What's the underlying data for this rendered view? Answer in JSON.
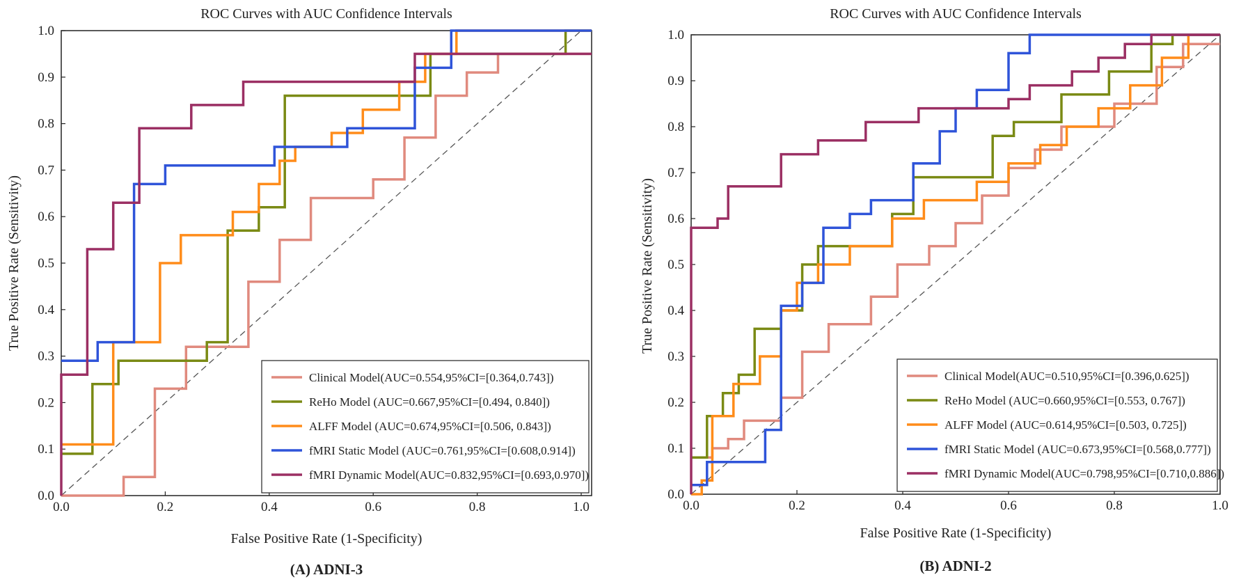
{
  "colors": {
    "clinical": "#E08A7E",
    "reho": "#7A8A14",
    "alff": "#FF8C1A",
    "static": "#2F54D9",
    "dynamic": "#9B2F63",
    "diagonal": "#555555"
  },
  "chart_data": [
    {
      "type": "line",
      "title": "ROC Curves with AUC Confidence Intervals",
      "xlabel": "False Positive Rate (1-Specificity)",
      "ylabel": "True Positive Rate (Sensitivity)",
      "caption": "(A) ADNI-3",
      "xlim": [
        0,
        1.02
      ],
      "ylim": [
        0,
        1.0
      ],
      "xticks": [
        "0.0",
        "0.2",
        "0.4",
        "0.6",
        "0.8",
        "1.0"
      ],
      "yticks": [
        "0.0",
        "0.1",
        "0.2",
        "0.3",
        "0.4",
        "0.5",
        "0.6",
        "0.7",
        "0.8",
        "0.9",
        "1.0"
      ],
      "legend_position": "bottom-right",
      "series": [
        {
          "name": "Clinical Model",
          "label": "Clinical Model(AUC=0.554,95%CI=[0.364,0.743])",
          "color_key": "clinical",
          "x": [
            0,
            0.12,
            0.12,
            0.18,
            0.18,
            0.24,
            0.24,
            0.36,
            0.36,
            0.42,
            0.42,
            0.48,
            0.48,
            0.6,
            0.6,
            0.66,
            0.66,
            0.72,
            0.72,
            0.78,
            0.78,
            0.84,
            0.84,
            1.02
          ],
          "y": [
            0,
            0,
            0.04,
            0.04,
            0.23,
            0.23,
            0.32,
            0.32,
            0.46,
            0.46,
            0.55,
            0.55,
            0.64,
            0.64,
            0.68,
            0.68,
            0.77,
            0.77,
            0.86,
            0.86,
            0.91,
            0.91,
            0.95,
            0.95
          ]
        },
        {
          "name": "ReHo Model",
          "label": "ReHo Model (AUC=0.667,95%CI=[0.494, 0.840])",
          "color_key": "reho",
          "x": [
            0,
            0.06,
            0.06,
            0.11,
            0.11,
            0.28,
            0.28,
            0.32,
            0.32,
            0.38,
            0.38,
            0.43,
            0.43,
            0.71,
            0.71,
            0.97,
            0.97,
            1.02
          ],
          "y": [
            0.09,
            0.09,
            0.24,
            0.24,
            0.29,
            0.29,
            0.33,
            0.33,
            0.57,
            0.57,
            0.62,
            0.62,
            0.86,
            0.86,
            0.95,
            0.95,
            1.0,
            1.0
          ]
        },
        {
          "name": "ALFF Model",
          "label": "ALFF Model (AUC=0.674,95%CI=[0.506, 0.843])",
          "color_key": "alff",
          "x": [
            0,
            0.05,
            0.05,
            0.1,
            0.1,
            0.19,
            0.19,
            0.23,
            0.23,
            0.33,
            0.33,
            0.38,
            0.38,
            0.42,
            0.42,
            0.45,
            0.45,
            0.52,
            0.52,
            0.58,
            0.58,
            0.65,
            0.65,
            0.7,
            0.7,
            0.76,
            0.76,
            0.93,
            0.93,
            1.02
          ],
          "y": [
            0.11,
            0.11,
            0.11,
            0.11,
            0.33,
            0.33,
            0.5,
            0.5,
            0.56,
            0.56,
            0.61,
            0.61,
            0.67,
            0.67,
            0.72,
            0.72,
            0.75,
            0.75,
            0.78,
            0.78,
            0.83,
            0.83,
            0.89,
            0.89,
            0.95,
            0.95,
            1.0,
            1.0,
            1.0,
            1.0
          ]
        },
        {
          "name": "fMRI Static Model",
          "label": "fMRI Static Model (AUC=0.761,95%CI=[0.608,0.914])",
          "color_key": "static",
          "x": [
            0,
            0.04,
            0.04,
            0.07,
            0.07,
            0.14,
            0.14,
            0.2,
            0.2,
            0.41,
            0.41,
            0.55,
            0.55,
            0.68,
            0.68,
            0.75,
            0.75,
            1.02
          ],
          "y": [
            0.29,
            0.29,
            0.29,
            0.29,
            0.33,
            0.33,
            0.67,
            0.67,
            0.71,
            0.71,
            0.75,
            0.75,
            0.79,
            0.79,
            0.92,
            0.92,
            1.0,
            1.0
          ]
        },
        {
          "name": "fMRI Dynamic Model",
          "label": "fMRI Dynamic Model(AUC=0.832,95%CI=[0.693,0.970])",
          "color_key": "dynamic",
          "x": [
            0,
            0,
            0.05,
            0.05,
            0.1,
            0.1,
            0.15,
            0.15,
            0.25,
            0.25,
            0.35,
            0.35,
            0.68,
            0.68,
            1.02
          ],
          "y": [
            0,
            0.26,
            0.26,
            0.53,
            0.53,
            0.63,
            0.63,
            0.79,
            0.79,
            0.84,
            0.84,
            0.89,
            0.89,
            0.95,
            0.95
          ]
        }
      ]
    },
    {
      "type": "line",
      "title": "ROC Curves with AUC Confidence Intervals",
      "xlabel": "False Positive Rate (1-Specificity)",
      "ylabel": "True Positive Rate (Sensitivity)",
      "caption": "(B) ADNI-2",
      "xlim": [
        0,
        1.0
      ],
      "ylim": [
        0,
        1.0
      ],
      "xticks": [
        "0.0",
        "0.2",
        "0.4",
        "0.6",
        "0.8",
        "1.0"
      ],
      "yticks": [
        "0.0",
        "0.1",
        "0.2",
        "0.3",
        "0.4",
        "0.5",
        "0.6",
        "0.7",
        "0.8",
        "0.9",
        "1.0"
      ],
      "legend_position": "bottom-right",
      "series": [
        {
          "name": "Clinical Model",
          "label": "Clinical Model(AUC=0.510,95%CI=[0.396,0.625])",
          "color_key": "clinical",
          "x": [
            0,
            0.04,
            0.04,
            0.07,
            0.07,
            0.1,
            0.1,
            0.17,
            0.17,
            0.21,
            0.21,
            0.26,
            0.26,
            0.34,
            0.34,
            0.39,
            0.39,
            0.45,
            0.45,
            0.5,
            0.5,
            0.55,
            0.55,
            0.6,
            0.6,
            0.65,
            0.65,
            0.7,
            0.7,
            0.8,
            0.8,
            0.88,
            0.88,
            0.93,
            0.93,
            1.0
          ],
          "y": [
            0.08,
            0.08,
            0.1,
            0.1,
            0.12,
            0.12,
            0.16,
            0.16,
            0.21,
            0.21,
            0.31,
            0.31,
            0.37,
            0.37,
            0.43,
            0.43,
            0.5,
            0.5,
            0.54,
            0.54,
            0.59,
            0.59,
            0.65,
            0.65,
            0.71,
            0.71,
            0.75,
            0.75,
            0.8,
            0.8,
            0.85,
            0.85,
            0.93,
            0.93,
            0.98,
            0.98
          ]
        },
        {
          "name": "ReHo Model",
          "label": "ReHo Model (AUC=0.660,95%CI=[0.553, 0.767])",
          "color_key": "reho",
          "x": [
            0,
            0.03,
            0.03,
            0.06,
            0.06,
            0.09,
            0.09,
            0.12,
            0.12,
            0.17,
            0.17,
            0.21,
            0.21,
            0.24,
            0.24,
            0.38,
            0.38,
            0.42,
            0.42,
            0.57,
            0.57,
            0.61,
            0.61,
            0.7,
            0.7,
            0.79,
            0.79,
            0.87,
            0.87,
            0.91,
            0.91,
            1.0
          ],
          "y": [
            0.08,
            0.08,
            0.17,
            0.17,
            0.22,
            0.22,
            0.26,
            0.26,
            0.36,
            0.36,
            0.4,
            0.4,
            0.5,
            0.5,
            0.54,
            0.54,
            0.61,
            0.61,
            0.69,
            0.69,
            0.78,
            0.78,
            0.81,
            0.81,
            0.87,
            0.87,
            0.92,
            0.92,
            0.98,
            0.98,
            1.0,
            1.0
          ]
        },
        {
          "name": "ALFF Model",
          "label": "ALFF Model (AUC=0.614,95%CI=[0.503, 0.725])",
          "color_key": "alff",
          "x": [
            0,
            0.02,
            0.02,
            0.04,
            0.04,
            0.08,
            0.08,
            0.13,
            0.13,
            0.17,
            0.17,
            0.2,
            0.2,
            0.24,
            0.24,
            0.3,
            0.3,
            0.38,
            0.38,
            0.44,
            0.44,
            0.54,
            0.54,
            0.6,
            0.6,
            0.66,
            0.66,
            0.71,
            0.71,
            0.77,
            0.77,
            0.83,
            0.83,
            0.89,
            0.89,
            0.94,
            0.94,
            1.0
          ],
          "y": [
            0,
            0,
            0.03,
            0.03,
            0.17,
            0.17,
            0.24,
            0.24,
            0.3,
            0.3,
            0.4,
            0.4,
            0.46,
            0.46,
            0.5,
            0.5,
            0.54,
            0.54,
            0.6,
            0.6,
            0.64,
            0.64,
            0.68,
            0.68,
            0.72,
            0.72,
            0.76,
            0.76,
            0.8,
            0.8,
            0.84,
            0.84,
            0.89,
            0.89,
            0.95,
            0.95,
            1.0,
            1.0
          ]
        },
        {
          "name": "fMRI Static Model",
          "label": "fMRI Static Model (AUC=0.673,95%CI=[0.568,0.777])",
          "color_key": "static",
          "x": [
            0,
            0.03,
            0.03,
            0.14,
            0.14,
            0.17,
            0.17,
            0.21,
            0.21,
            0.25,
            0.25,
            0.3,
            0.3,
            0.34,
            0.34,
            0.42,
            0.42,
            0.47,
            0.47,
            0.5,
            0.5,
            0.54,
            0.54,
            0.6,
            0.6,
            0.64,
            0.64,
            0.74,
            0.74,
            1.0
          ],
          "y": [
            0.02,
            0.02,
            0.07,
            0.07,
            0.14,
            0.14,
            0.41,
            0.41,
            0.46,
            0.46,
            0.58,
            0.58,
            0.61,
            0.61,
            0.64,
            0.64,
            0.72,
            0.72,
            0.79,
            0.79,
            0.84,
            0.84,
            0.88,
            0.88,
            0.96,
            0.96,
            1.0,
            1.0,
            1.0,
            1.0
          ]
        },
        {
          "name": "fMRI Dynamic Model",
          "label": "fMRI Dynamic Model(AUC=0.798,95%CI=[0.710,0.886])",
          "color_key": "dynamic",
          "x": [
            0,
            0,
            0.05,
            0.05,
            0.07,
            0.07,
            0.11,
            0.11,
            0.17,
            0.17,
            0.24,
            0.24,
            0.33,
            0.33,
            0.43,
            0.43,
            0.6,
            0.6,
            0.64,
            0.64,
            0.72,
            0.72,
            0.77,
            0.77,
            0.82,
            0.82,
            0.87,
            0.87,
            0.91,
            0.91,
            1.0
          ],
          "y": [
            0,
            0.58,
            0.58,
            0.6,
            0.6,
            0.67,
            0.67,
            0.67,
            0.67,
            0.74,
            0.74,
            0.77,
            0.77,
            0.81,
            0.81,
            0.84,
            0.84,
            0.86,
            0.86,
            0.89,
            0.89,
            0.92,
            0.92,
            0.95,
            0.95,
            0.98,
            0.98,
            1.0,
            1.0,
            1.0,
            1.0
          ]
        }
      ]
    }
  ]
}
